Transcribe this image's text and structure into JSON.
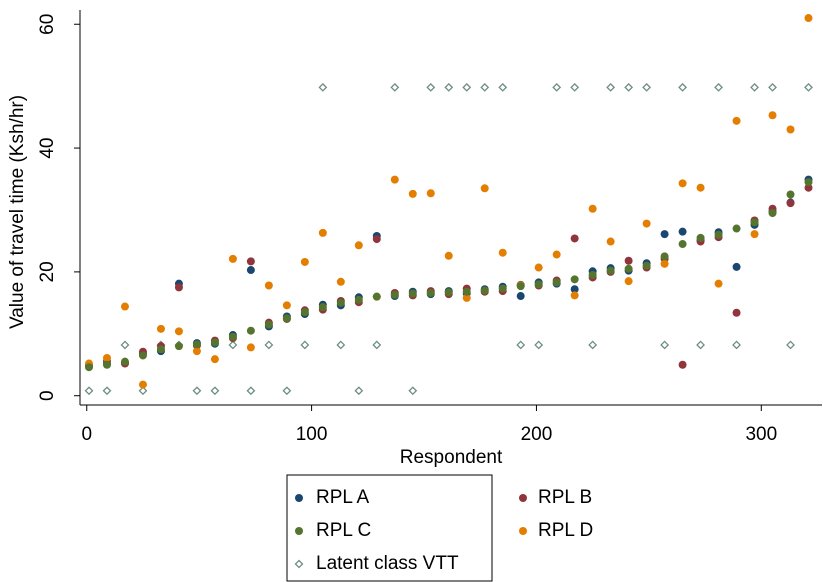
{
  "chart_data": {
    "type": "scatter",
    "x_label": "Respondent",
    "y_label": "Value of travel time (Ksh/hr)",
    "x": [
      1,
      9,
      17,
      25,
      33,
      41,
      49,
      57,
      65,
      73,
      81,
      89,
      97,
      105,
      113,
      121,
      129,
      137,
      145,
      153,
      161,
      169,
      177,
      185,
      193,
      201,
      209,
      217,
      225,
      233,
      241,
      249,
      257,
      265,
      273,
      281,
      289,
      297,
      305,
      313,
      321
    ],
    "xlim": [
      -3,
      327
    ],
    "xticks": [
      0,
      100,
      200,
      300
    ],
    "ylim": [
      -1.5,
      62.3
    ],
    "yticks": [
      0,
      20,
      40,
      60
    ],
    "series": [
      {
        "name": "RPL A",
        "color": "#1a476f",
        "marker": "circle",
        "values": [
          4.8,
          5.2,
          5.3,
          6.8,
          7.2,
          18.1,
          8.5,
          8.4,
          9.8,
          20.3,
          11.2,
          12.8,
          13.2,
          14.7,
          14.6,
          15.9,
          25.8,
          16.1,
          16.8,
          16.4,
          16.9,
          16.5,
          17.2,
          17.6,
          16.1,
          18.3,
          18.1,
          17.2,
          20.1,
          20.6,
          20.2,
          21.4,
          26.1,
          26.5,
          25.1,
          26.4,
          20.8,
          27.6,
          29.8,
          31.2,
          34.9
        ]
      },
      {
        "name": "RPL B",
        "color": "#90353b",
        "marker": "circle",
        "values": [
          4.9,
          5.6,
          5.2,
          7.1,
          8,
          17.5,
          8.1,
          8.9,
          9.3,
          21.7,
          11.8,
          12.4,
          13.8,
          13.9,
          15.3,
          15.1,
          25.3,
          16.6,
          16.2,
          16.9,
          16.4,
          17.3,
          16.8,
          16.9,
          17.9,
          17.8,
          18.6,
          25.4,
          19.1,
          20,
          21.8,
          20.7,
          22.1,
          5,
          24.9,
          25.6,
          13.4,
          28.3,
          30.2,
          31.1,
          33.6
        ]
      },
      {
        "name": "RPL C",
        "color": "#55752f",
        "marker": "circle",
        "values": [
          4.6,
          5,
          5.5,
          6.5,
          7.5,
          8,
          8.3,
          8.6,
          9.5,
          10.5,
          11.5,
          12.5,
          13.5,
          14.3,
          15,
          15.5,
          16,
          16.3,
          16.5,
          16.6,
          16.7,
          16.8,
          17,
          17.3,
          17.7,
          18,
          18.3,
          18.8,
          19.5,
          20.2,
          20.5,
          21,
          22.5,
          24.5,
          25.5,
          26,
          27,
          28,
          29.5,
          32.5,
          34.5
        ]
      },
      {
        "name": "RPL D",
        "color": "#e37e00",
        "marker": "circle",
        "values": [
          5.2,
          6.1,
          14.4,
          1.8,
          10.8,
          10.4,
          7.2,
          5.9,
          22.1,
          7.8,
          17.8,
          14.6,
          21.6,
          26.3,
          18.4,
          24.3,
          16,
          34.9,
          32.6,
          32.7,
          22.6,
          15.8,
          33.5,
          23.1,
          17.8,
          20.7,
          22.8,
          16.2,
          30.2,
          24.9,
          18.5,
          27.8,
          21.3,
          34.3,
          33.6,
          18.1,
          44.4,
          26.1,
          45.3,
          43,
          61
        ]
      },
      {
        "name": "Latent class VTT",
        "color": "#6e8e84",
        "marker": "diamond-hollow",
        "values": [
          0.8,
          0.8,
          8.2,
          0.8,
          8.2,
          8.2,
          0.8,
          0.8,
          8.2,
          0.8,
          8.2,
          0.8,
          8.2,
          49.8,
          8.2,
          0.8,
          8.2,
          49.8,
          0.8,
          49.8,
          49.8,
          49.8,
          49.8,
          49.8,
          8.2,
          8.2,
          49.8,
          49.8,
          8.2,
          49.8,
          49.8,
          49.8,
          8.2,
          49.8,
          8.2,
          49.8,
          8.2,
          49.8,
          49.8,
          8.2,
          49.8
        ]
      }
    ]
  }
}
